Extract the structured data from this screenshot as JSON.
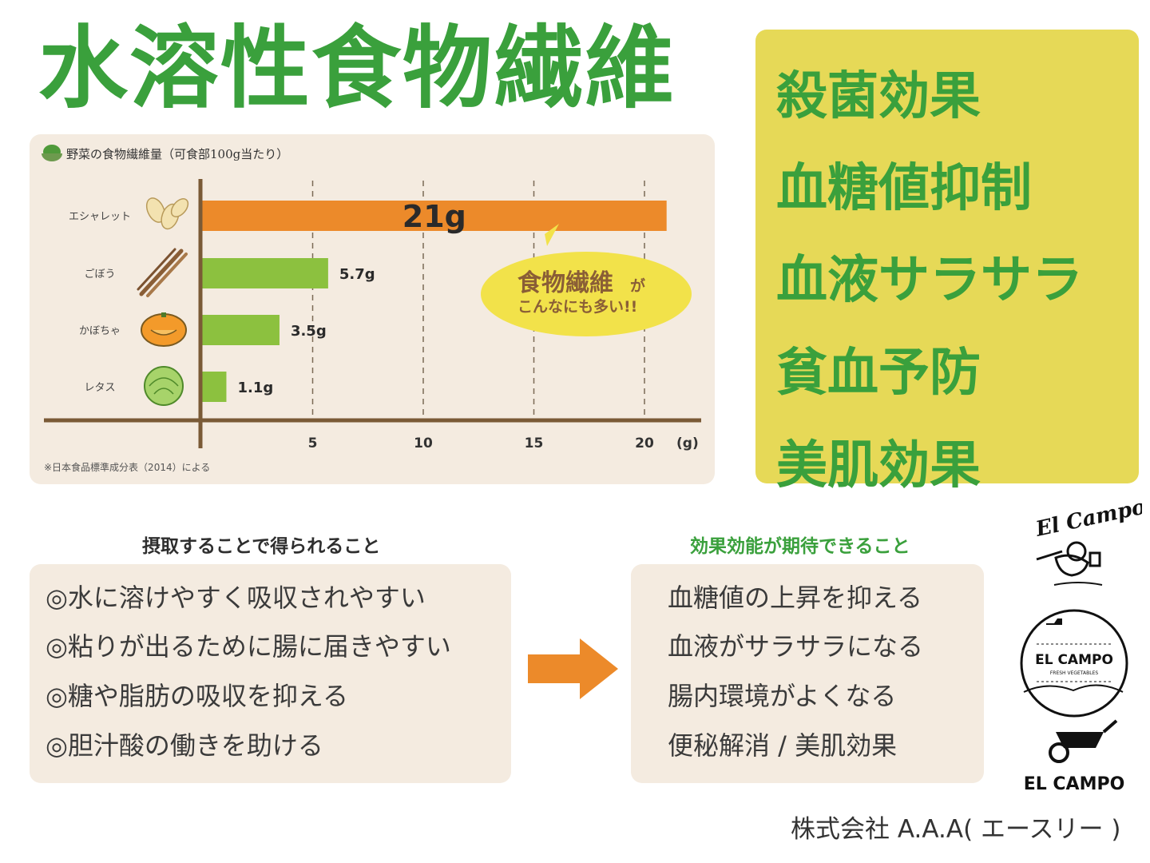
{
  "title": "水溶性食物繊維",
  "benefits": [
    "殺菌効果",
    "血糖値抑制",
    "血液サラサラ",
    "貧血予防",
    "美肌効果"
  ],
  "chart_data": {
    "type": "bar",
    "orientation": "horizontal",
    "title": "野菜の食物繊維量（可食部100g当たり）",
    "categories": [
      "エシャレット",
      "ごぼう",
      "かぼちゃ",
      "レタス"
    ],
    "values": [
      21,
      5.7,
      3.5,
      1.1
    ],
    "value_labels": [
      "21g",
      "5.7g",
      "3.5g",
      "1.1g"
    ],
    "bar_colors": [
      "#ec8a2a",
      "#8cc13f",
      "#8cc13f",
      "#8cc13f"
    ],
    "x_ticks": [
      "5",
      "10",
      "15",
      "20"
    ],
    "x_unit": "(g)",
    "xlim": [
      0,
      22
    ],
    "callout_main": "食物繊維",
    "callout_particle": "が",
    "callout_sub": "こんなにも多い!!",
    "source": "※日本食品標準成分表（2014）による"
  },
  "left_section": {
    "heading": "摂取することで得られること",
    "items": [
      "◎水に溶けやすく吸収されやすい",
      "◎粘りが出るために腸に届きやすい",
      "◎糖や脂肪の吸収を抑える",
      "◎胆汁酸の働きを助ける"
    ]
  },
  "right_section": {
    "heading": "効果効能が期待できること",
    "items": [
      "血糖値の上昇を抑える",
      "血液がサラサラになる",
      "腸内環境がよくなる",
      "便秘解消 / 美肌効果"
    ]
  },
  "logos": {
    "script": "El Campo",
    "badge_main": "EL CAMPO",
    "badge_sub": "FRESH VEGETABLES",
    "wordmark": "EL CAMPO"
  },
  "company": "株式会社 A.A.A( エースリー )",
  "colors": {
    "green": "#3aa03c",
    "orange": "#ec8a2a",
    "yellow_panel": "#e6d957",
    "beige": "#f4ebe0"
  }
}
